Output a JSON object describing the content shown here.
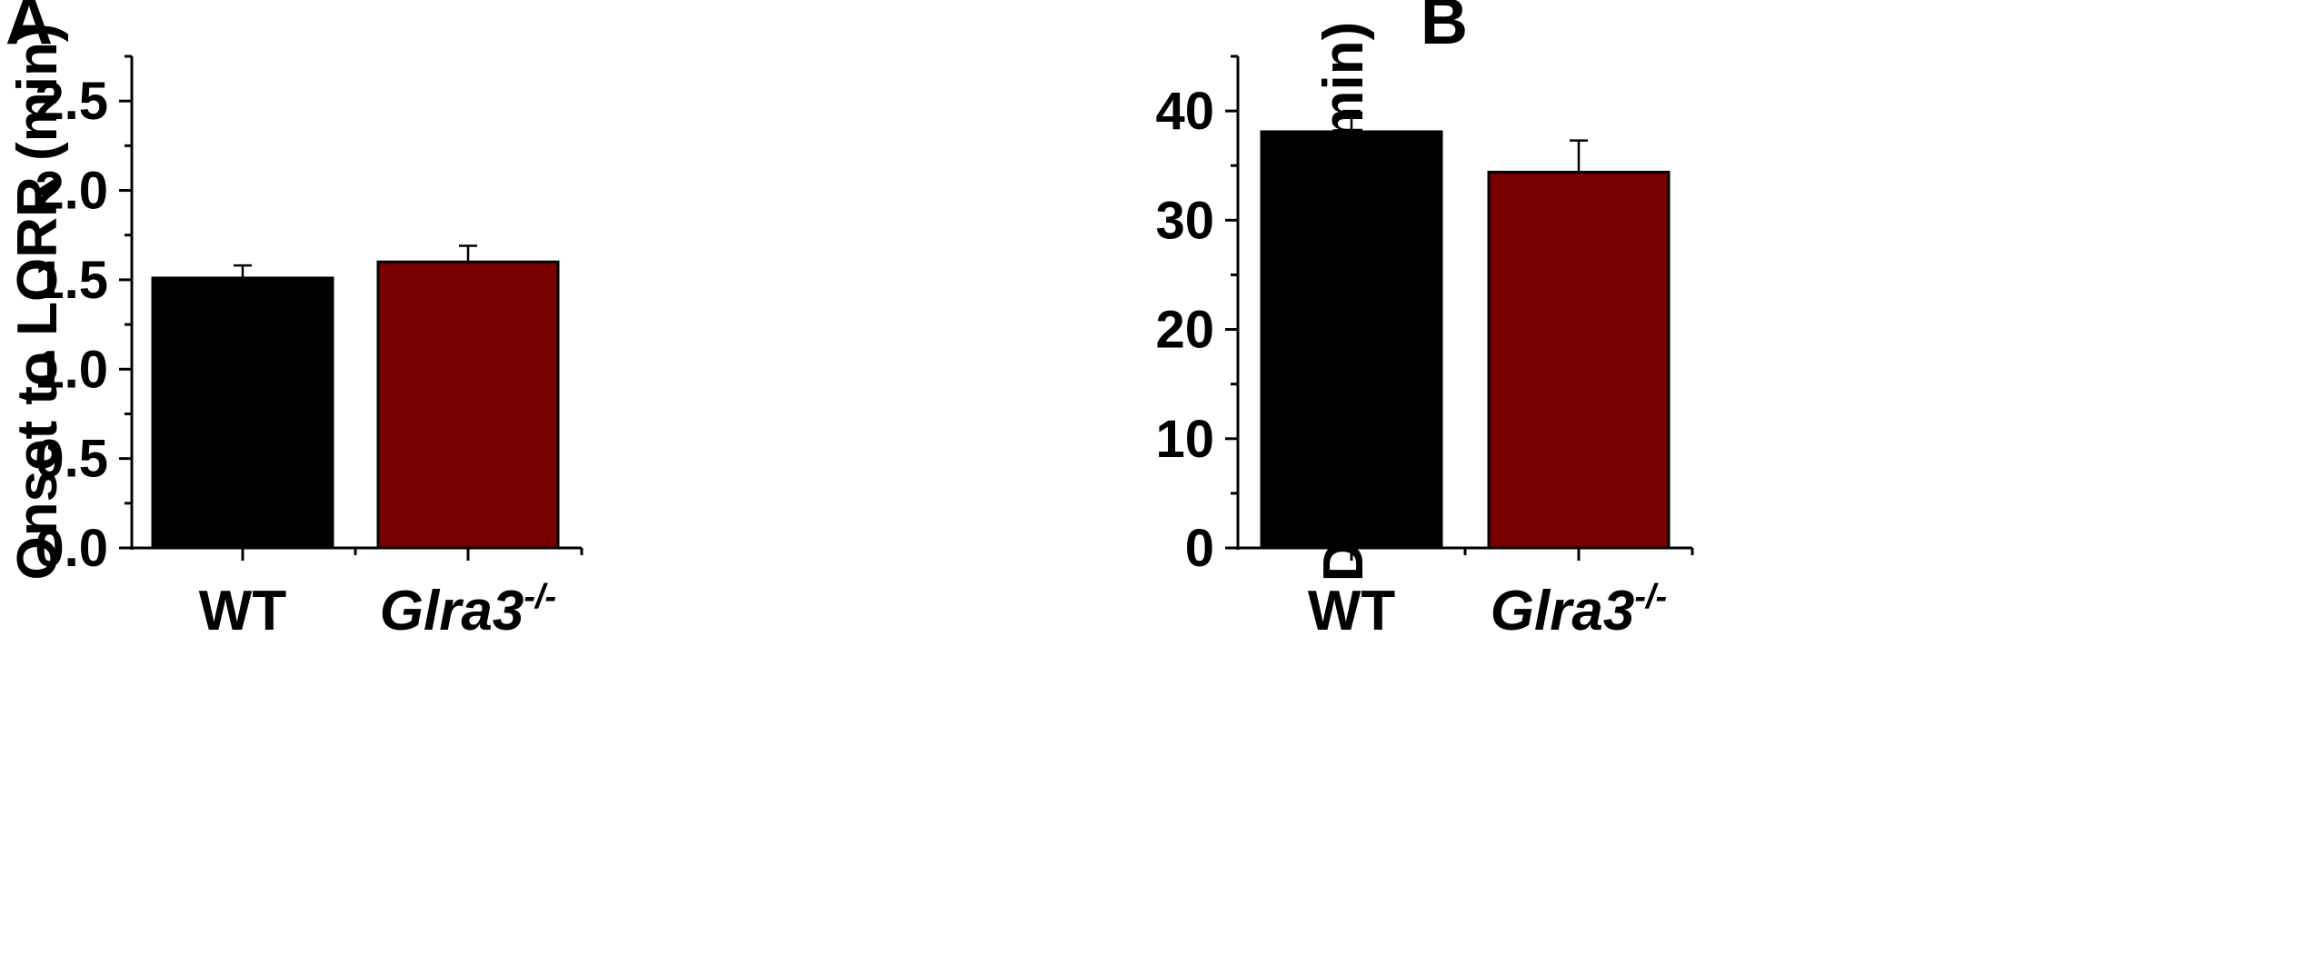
{
  "chart_data": [
    {
      "panel_letter": "A",
      "type": "bar",
      "categories": [
        "WT",
        "Glra3"
      ],
      "category_superscripts": [
        "",
        "-/-"
      ],
      "values": [
        1.51,
        1.6
      ],
      "errors": [
        0.07,
        0.09
      ],
      "colors": [
        "#000000",
        "#7a0000"
      ],
      "ylabel": "Onset to LORR (min)",
      "xlabel": "",
      "ylim": [
        0,
        2.75
      ],
      "yticks": [
        "0.0",
        "0.5",
        "1.0",
        "1.5",
        "2.0",
        "2.5"
      ],
      "ytick_values": [
        0,
        0.5,
        1.0,
        1.5,
        2.0,
        2.5
      ],
      "minor_ticks": true,
      "grid": false
    },
    {
      "panel_letter": "B",
      "type": "bar",
      "categories": [
        "WT",
        "Glra3"
      ],
      "category_superscripts": [
        "",
        "-/-"
      ],
      "values": [
        38.1,
        34.4
      ],
      "errors": [
        1.9,
        2.9
      ],
      "colors": [
        "#000000",
        "#7a0000"
      ],
      "ylabel": "Duration LORR (min)",
      "xlabel": "",
      "ylim": [
        0,
        45
      ],
      "yticks": [
        "0",
        "10",
        "20",
        "30",
        "40"
      ],
      "ytick_values": [
        0,
        10,
        20,
        30,
        40
      ],
      "minor_ticks": true,
      "grid": false
    }
  ]
}
